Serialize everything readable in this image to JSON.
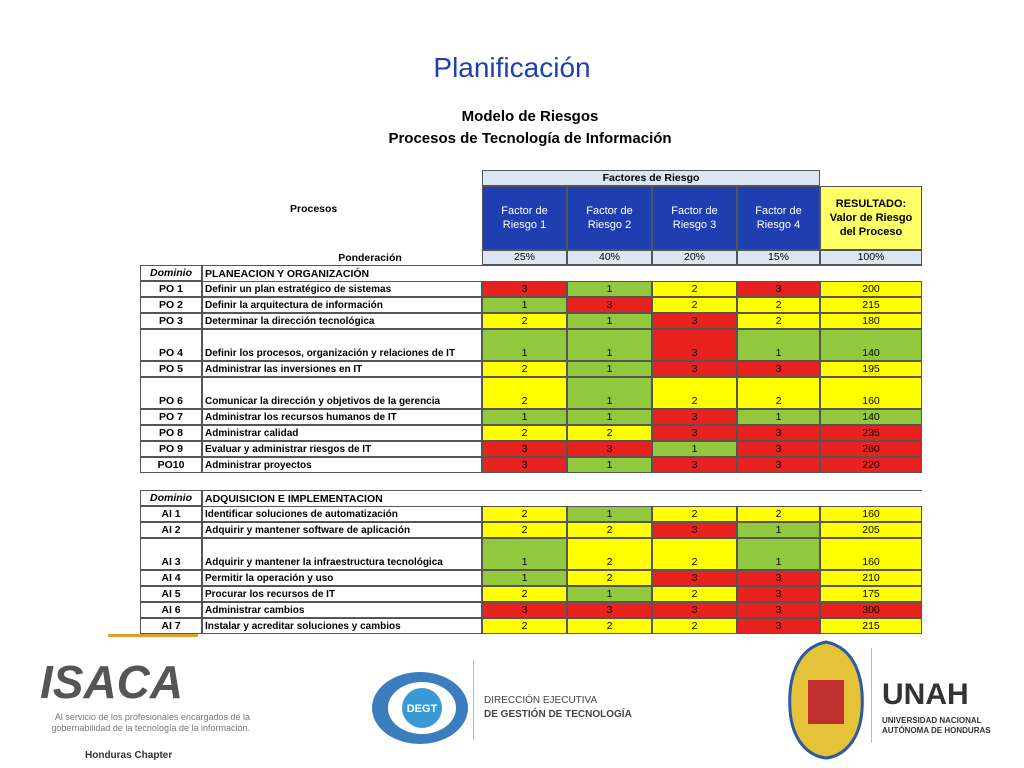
{
  "title": "Planificación",
  "table": {
    "title": "Modelo de Riesgos",
    "subtitle": "Procesos de Tecnología de Información",
    "header_group": "Factores de Riesgo",
    "process_header": "Procesos",
    "factor_headers": [
      "Factor de Riesgo 1",
      "Factor de Riesgo 2",
      "Factor de Riesgo 3",
      "Factor de Riesgo 4"
    ],
    "result_header": "RESULTADO: Valor de Riesgo del Proceso",
    "weight_label": "Ponderación",
    "weights": [
      "25%",
      "40%",
      "20%",
      "15%",
      "100%"
    ],
    "sections": [
      {
        "domain_label": "Dominio",
        "name": "PLANEACION Y ORGANIZACIÓN",
        "rows": [
          {
            "code": "PO 1",
            "process": "Definir un plan estratégico de sistemas",
            "factors": [
              3,
              1,
              2,
              3
            ],
            "result": 200,
            "colors": [
              "#e8231f",
              "#92c83e",
              "#ffff00",
              "#e8231f",
              "#ffff00"
            ]
          },
          {
            "code": "PO 2",
            "process": "Definir la arquitectura de información",
            "factors": [
              1,
              3,
              2,
              2
            ],
            "result": 215,
            "colors": [
              "#92c83e",
              "#e8231f",
              "#ffff00",
              "#ffff00",
              "#ffff00"
            ]
          },
          {
            "code": "PO 3",
            "process": "Determinar la dirección tecnológica",
            "factors": [
              2,
              1,
              3,
              2
            ],
            "result": 180,
            "colors": [
              "#ffff00",
              "#92c83e",
              "#e8231f",
              "#ffff00",
              "#ffff00"
            ]
          },
          {
            "code": "PO 4",
            "process": "Definir los procesos, organización y relaciones de IT",
            "factors": [
              1,
              1,
              3,
              1
            ],
            "result": 140,
            "colors": [
              "#92c83e",
              "#92c83e",
              "#e8231f",
              "#92c83e",
              "#92c83e"
            ]
          },
          {
            "code": "PO 5",
            "process": "Administrar las inversiones en IT",
            "factors": [
              2,
              1,
              3,
              3
            ],
            "result": 195,
            "colors": [
              "#ffff00",
              "#92c83e",
              "#e8231f",
              "#e8231f",
              "#ffff00"
            ]
          },
          {
            "code": "PO 6",
            "process": "Comunicar la dirección y objetivos de la gerencia",
            "factors": [
              2,
              1,
              2,
              2
            ],
            "result": 160,
            "colors": [
              "#ffff00",
              "#92c83e",
              "#ffff00",
              "#ffff00",
              "#ffff00"
            ]
          },
          {
            "code": "PO 7",
            "process": "Administrar los recursos humanos de IT",
            "factors": [
              1,
              1,
              3,
              1
            ],
            "result": 140,
            "colors": [
              "#92c83e",
              "#92c83e",
              "#e8231f",
              "#92c83e",
              "#92c83e"
            ]
          },
          {
            "code": "PO 8",
            "process": "Administrar calidad",
            "factors": [
              2,
              2,
              3,
              3
            ],
            "result": 235,
            "colors": [
              "#ffff00",
              "#ffff00",
              "#e8231f",
              "#e8231f",
              "#e8231f"
            ]
          },
          {
            "code": "PO 9",
            "process": "Evaluar y administrar riesgos de IT",
            "factors": [
              3,
              3,
              1,
              3
            ],
            "result": 260,
            "colors": [
              "#e8231f",
              "#e8231f",
              "#92c83e",
              "#e8231f",
              "#e8231f"
            ]
          },
          {
            "code": "PO10",
            "process": "Administrar proyectos",
            "factors": [
              3,
              1,
              3,
              3
            ],
            "result": 220,
            "colors": [
              "#e8231f",
              "#92c83e",
              "#e8231f",
              "#e8231f",
              "#e8231f"
            ]
          }
        ]
      },
      {
        "domain_label": "Dominio",
        "name": "ADQUISICION E IMPLEMENTACION",
        "rows": [
          {
            "code": "AI 1",
            "process": "Identificar soluciones de automatización",
            "factors": [
              2,
              1,
              2,
              2
            ],
            "result": 160,
            "colors": [
              "#ffff00",
              "#92c83e",
              "#ffff00",
              "#ffff00",
              "#ffff00"
            ]
          },
          {
            "code": "AI 2",
            "process": "Adquirir y mantener software de aplicación",
            "factors": [
              2,
              2,
              3,
              1
            ],
            "result": 205,
            "colors": [
              "#ffff00",
              "#ffff00",
              "#e8231f",
              "#92c83e",
              "#ffff00"
            ]
          },
          {
            "code": "AI 3",
            "process": "Adquirir y mantener la infraestructura tecnológica",
            "factors": [
              1,
              2,
              2,
              1
            ],
            "result": 160,
            "colors": [
              "#92c83e",
              "#ffff00",
              "#ffff00",
              "#92c83e",
              "#ffff00"
            ]
          },
          {
            "code": "AI 4",
            "process": "Permitir la operación y uso",
            "factors": [
              1,
              2,
              3,
              3
            ],
            "result": 210,
            "colors": [
              "#92c83e",
              "#ffff00",
              "#e8231f",
              "#e8231f",
              "#ffff00"
            ]
          },
          {
            "code": "AI 5",
            "process": "Procurar los recursos de IT",
            "factors": [
              2,
              1,
              2,
              3
            ],
            "result": 175,
            "colors": [
              "#ffff00",
              "#92c83e",
              "#ffff00",
              "#e8231f",
              "#ffff00"
            ]
          },
          {
            "code": "AI 6",
            "process": "Administrar cambios",
            "factors": [
              3,
              3,
              3,
              3
            ],
            "result": 300,
            "colors": [
              "#e8231f",
              "#e8231f",
              "#e8231f",
              "#e8231f",
              "#e8231f"
            ]
          },
          {
            "code": "AI 7",
            "process": "Instalar y acreditar soluciones y cambios",
            "factors": [
              2,
              2,
              2,
              3
            ],
            "result": 215,
            "colors": [
              "#ffff00",
              "#ffff00",
              "#ffff00",
              "#e8231f",
              "#ffff00"
            ]
          }
        ]
      }
    ]
  },
  "footer": {
    "isaca": "ISACA",
    "isaca_tagline": "Al servicio de los profesionales encargados de la gobernabilidad de la tecnología de la información.",
    "isaca_chapter": "Honduras Chapter",
    "degt": "DEGT",
    "degt_line1": "DIRECCIÓN EJECUTIVA",
    "degt_line2": "DE GESTIÓN DE TECNOLOGÍA",
    "unah": "UNAH",
    "unah_line1": "UNIVERSIDAD NACIONAL",
    "unah_line2": "AUTÓNOMA DE HONDURAS"
  }
}
